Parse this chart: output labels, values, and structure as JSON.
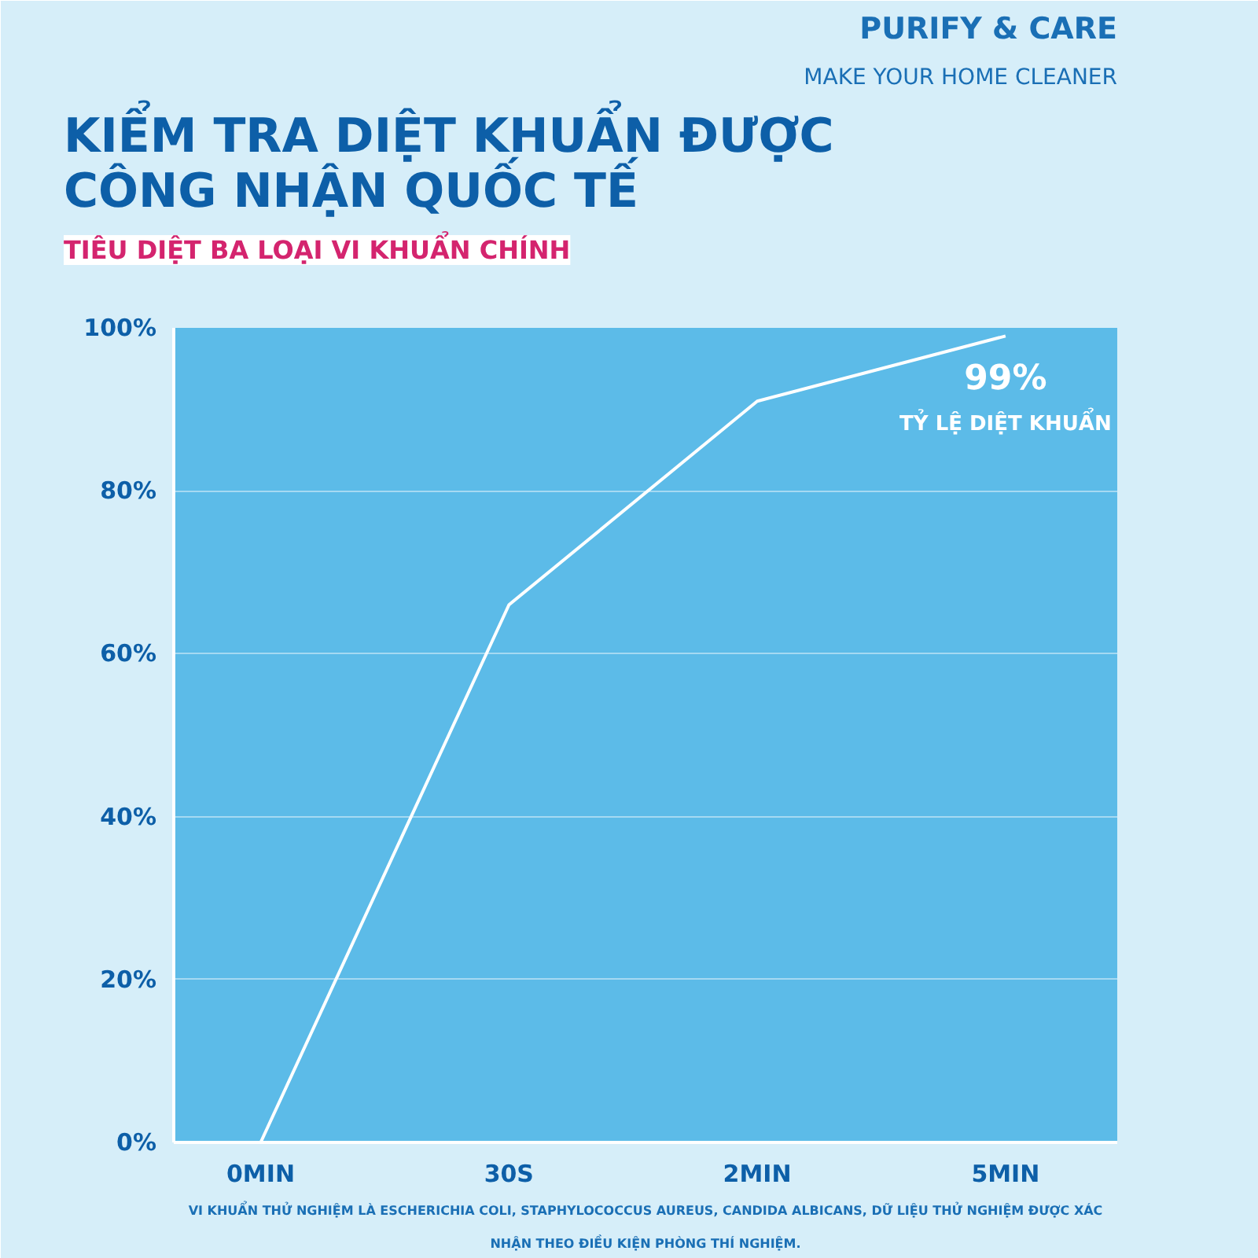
{
  "chart_data": {
    "type": "line",
    "title": "KIỂM TRA DIỆT KHUẨN ĐƯỢC\nCÔNG NHẬN QUỐC TẾ",
    "subtitle": "TIÊU DIỆT BA LOẠI VI KHUẨN CHÍNH",
    "categories": [
      "0MIN",
      "30S",
      "2MIN",
      "5MIN"
    ],
    "values": [
      0,
      66,
      91,
      99
    ],
    "color": "#ffffff",
    "ylim": [
      0,
      100
    ],
    "yticks": [
      {
        "value": 0,
        "label": "0%"
      },
      {
        "value": 20,
        "label": "20%"
      },
      {
        "value": 40,
        "label": "40%"
      },
      {
        "value": 60,
        "label": "60%"
      },
      {
        "value": 80,
        "label": "80%"
      },
      {
        "value": 100,
        "label": "100%"
      }
    ],
    "grid": "y",
    "marker": "none",
    "line_style": "solid",
    "legend": false,
    "annotations": [
      "PURIFY & CARE",
      "MAKE YOUR HOME CLEANER",
      {
        "text": "99%",
        "x": "5MIN",
        "y": 99
      },
      "TỶ LỆ DIỆT KHUẨN",
      "VI KHUẨN THỬ NGHIỆM LÀ ESCHERICHIA COLI, STAPHYLOCOCCUS AUREUS, CANDIDA ALBICANS, DỮ LIỆU THỬ NGHIỆM ĐƯỢC XÁC\nNHẬN THEO ĐIỀU KIỆN PHÒNG THÍ NGHIỆM."
    ]
  }
}
